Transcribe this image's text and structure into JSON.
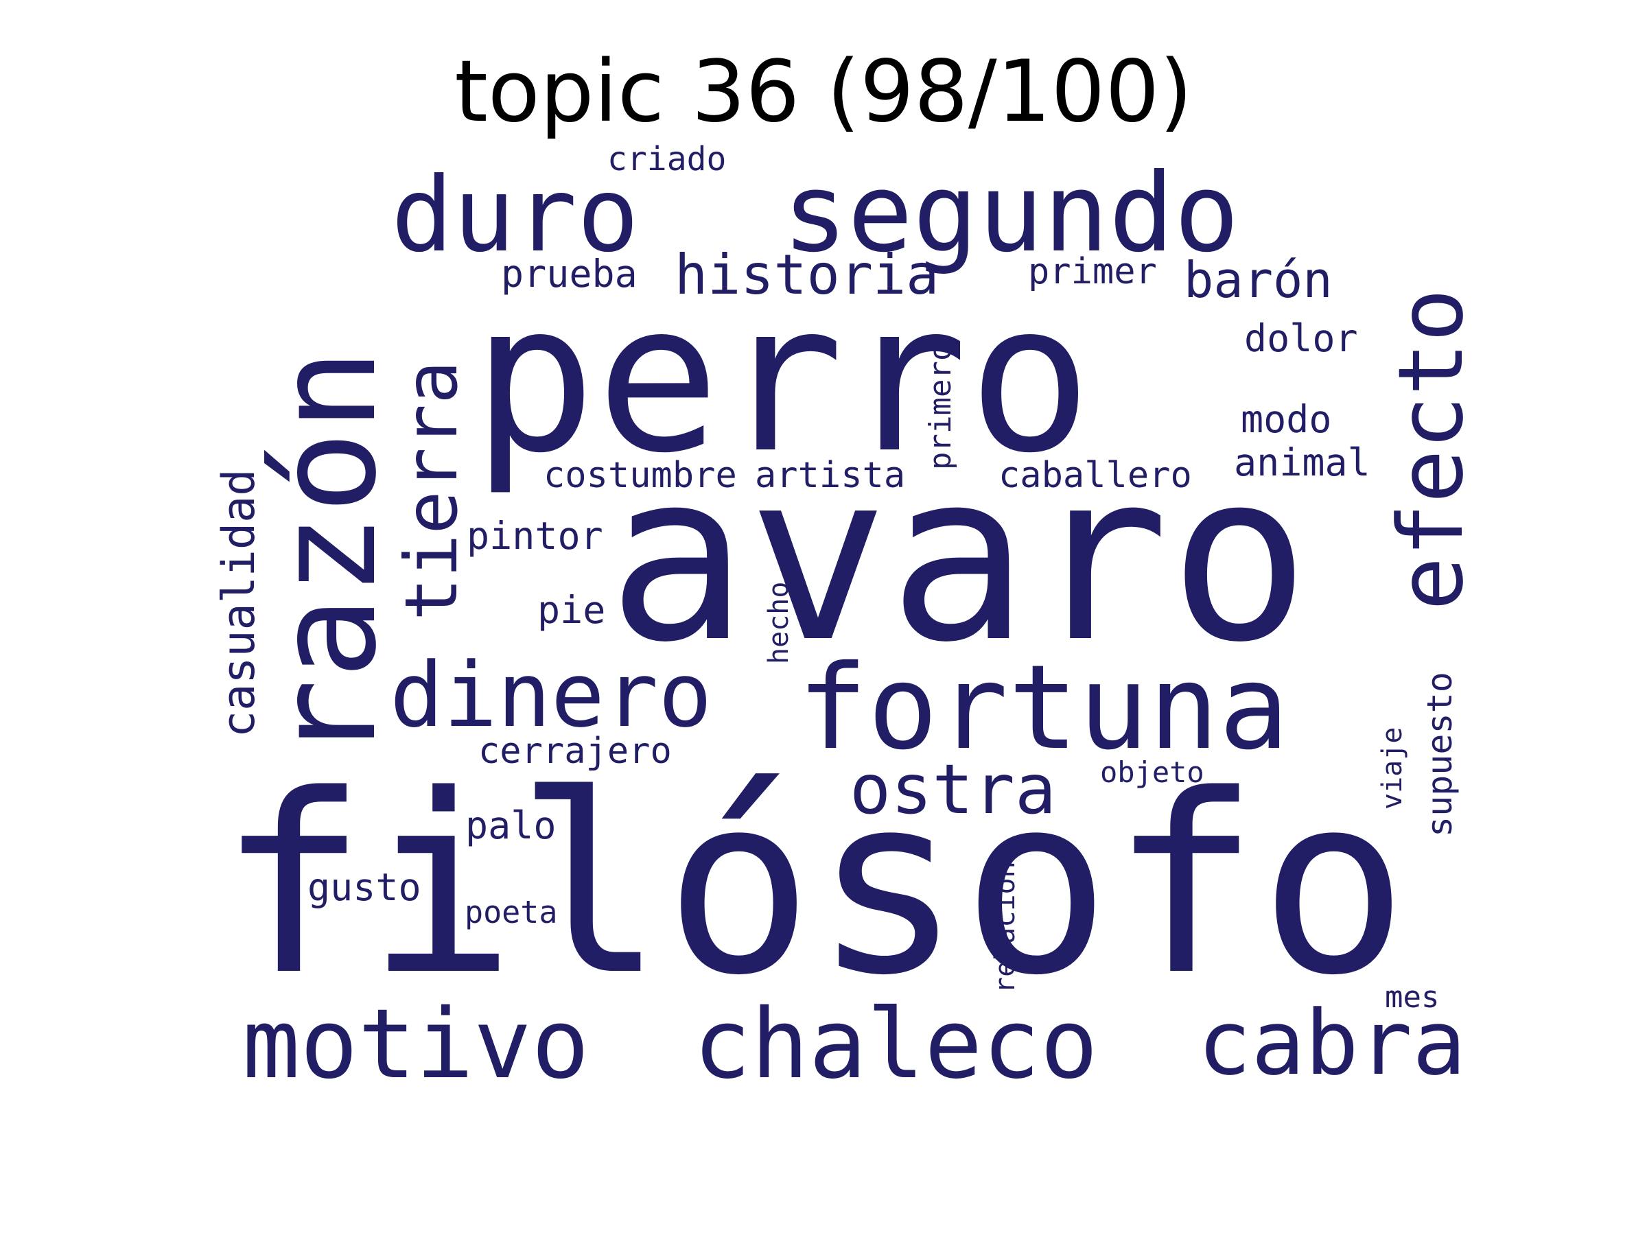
{
  "title": "topic 36 (98/100)",
  "word_color": "#221e66",
  "words": [
    {
      "text": "filósofo"
    },
    {
      "text": "avaro"
    },
    {
      "text": "perro"
    },
    {
      "text": "razón"
    },
    {
      "text": "segundo"
    },
    {
      "text": "fortuna"
    },
    {
      "text": "chaleco"
    },
    {
      "text": "motivo"
    },
    {
      "text": "cabra"
    },
    {
      "text": "duro"
    },
    {
      "text": "dinero"
    },
    {
      "text": "efecto"
    },
    {
      "text": "tierra"
    },
    {
      "text": "ostra"
    },
    {
      "text": "historia"
    },
    {
      "text": "barón"
    },
    {
      "text": "casualidad"
    },
    {
      "text": "supuesto"
    },
    {
      "text": "costumbre"
    },
    {
      "text": "artista"
    },
    {
      "text": "caballero"
    },
    {
      "text": "animal"
    },
    {
      "text": "modo"
    },
    {
      "text": "dolor"
    },
    {
      "text": "primer"
    },
    {
      "text": "prueba"
    },
    {
      "text": "primero"
    },
    {
      "text": "pintor"
    },
    {
      "text": "pie"
    },
    {
      "text": "hecho"
    },
    {
      "text": "cerrajero"
    },
    {
      "text": "palo"
    },
    {
      "text": "gusto"
    },
    {
      "text": "poeta"
    },
    {
      "text": "relación"
    },
    {
      "text": "objeto"
    },
    {
      "text": "viaje"
    },
    {
      "text": "mes"
    },
    {
      "text": "criado"
    }
  ]
}
